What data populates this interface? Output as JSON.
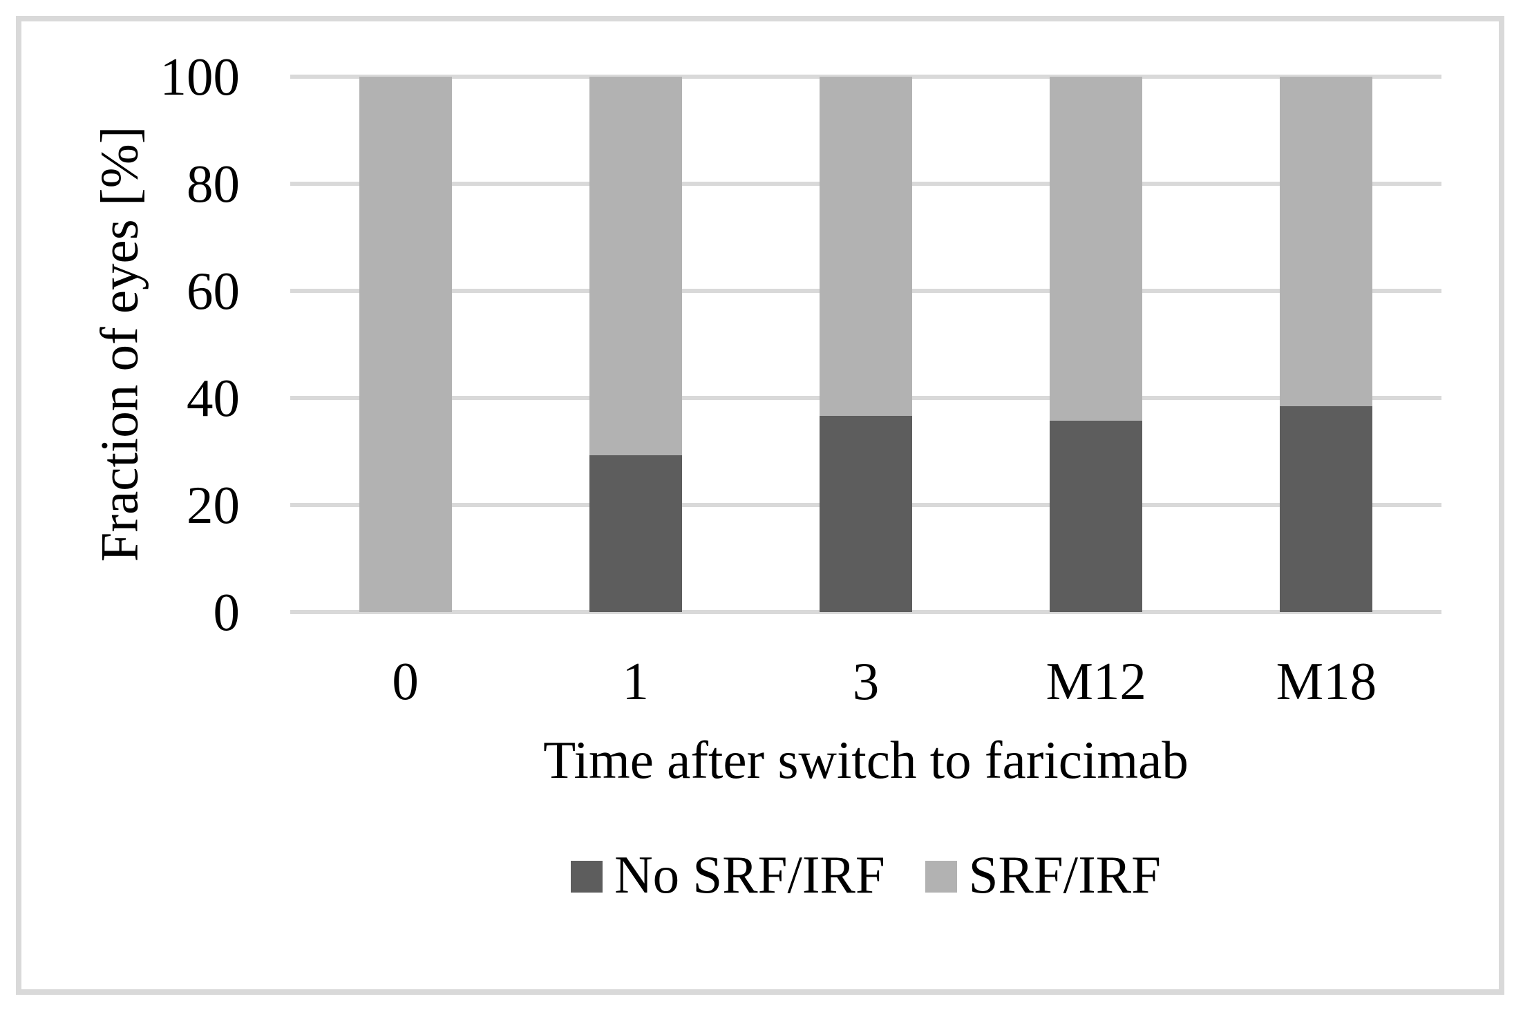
{
  "figure": {
    "background_color": "#ffffff",
    "border_color": "#d9d9d9"
  },
  "chart_data": {
    "type": "bar",
    "stacked": true,
    "title": "",
    "xlabel": "Time after switch to faricimab",
    "ylabel": "Fraction of eyes [%]",
    "categories": [
      "0",
      "1",
      "3",
      "M12",
      "M18"
    ],
    "series": [
      {
        "name": "No SRF/IRF",
        "color": "#5d5d5d",
        "values": [
          0,
          29.3,
          36.6,
          35.8,
          38.5
        ]
      },
      {
        "name": "SRF/IRF",
        "color": "#b2b2b2",
        "values": [
          100,
          70.7,
          63.4,
          64.2,
          61.5
        ]
      }
    ],
    "ylim": [
      0,
      100
    ],
    "yticks": [
      0,
      20,
      40,
      60,
      80,
      100
    ],
    "grid": true,
    "gridline_color": "#d9d9d9",
    "legend_position": "bottom-center"
  }
}
